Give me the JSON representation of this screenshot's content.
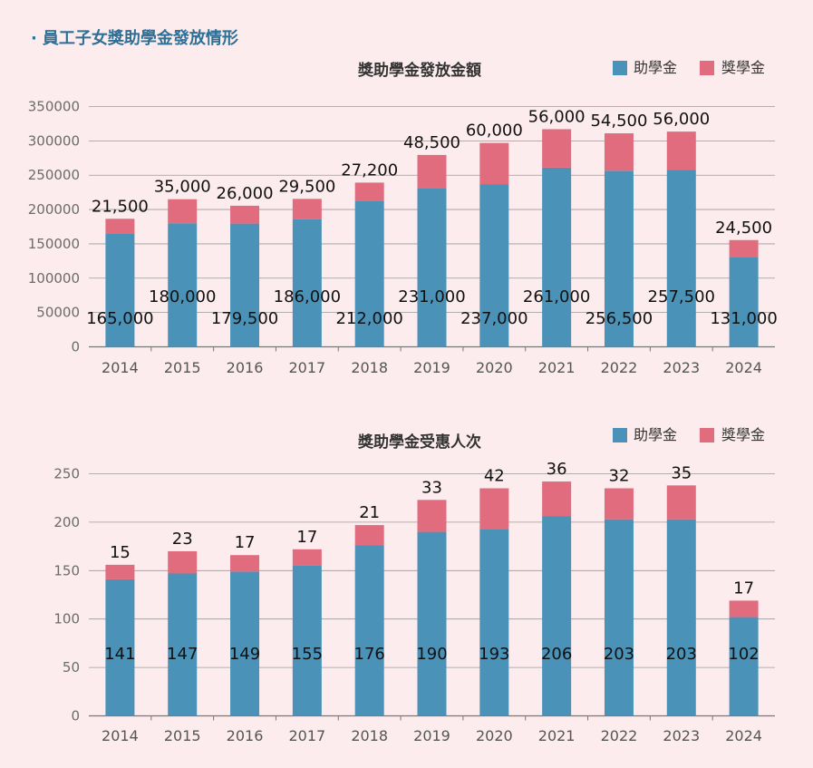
{
  "page_title": "員工子女獎助學金發放情形",
  "legend": {
    "grant": "助學金",
    "scholarship": "獎學金"
  },
  "colors": {
    "grant": "#4a92b7",
    "scholarship": "#e06c7e",
    "grid": "#9a9a9a"
  },
  "chart_data": [
    {
      "type": "bar",
      "stacked": true,
      "title": "獎助學金發放金額",
      "categories": [
        "2014",
        "2015",
        "2016",
        "2017",
        "2018",
        "2019",
        "2020",
        "2021",
        "2022",
        "2023",
        "2024"
      ],
      "series": [
        {
          "name": "助學金",
          "values": [
            165000,
            180000,
            179500,
            186000,
            212000,
            231000,
            237000,
            261000,
            256500,
            257500,
            131000
          ],
          "labels": [
            "165,000",
            "180,000",
            "179,500",
            "186,000",
            "212,000",
            "231,000",
            "237,000",
            "261,000",
            "256,500",
            "257,500",
            "131,000"
          ]
        },
        {
          "name": "獎學金",
          "values": [
            21500,
            35000,
            26000,
            29500,
            27200,
            48500,
            60000,
            56000,
            54500,
            56000,
            24500
          ],
          "labels": [
            "21,500",
            "35,000",
            "26,000",
            "29,500",
            "27,200",
            "48,500",
            "60,000",
            "56,000",
            "54,500",
            "56,000",
            "24,500"
          ]
        }
      ],
      "ylim": [
        0,
        350000
      ],
      "yticks": [
        0,
        50000,
        100000,
        150000,
        200000,
        250000,
        300000,
        350000
      ],
      "ytick_labels": [
        "0",
        "50000",
        "100000",
        "150000",
        "200000",
        "250000",
        "300000",
        "350000"
      ],
      "grid": true,
      "legend_position": "top-right"
    },
    {
      "type": "bar",
      "stacked": true,
      "title": "獎助學金受惠人次",
      "categories": [
        "2014",
        "2015",
        "2016",
        "2017",
        "2018",
        "2019",
        "2020",
        "2021",
        "2022",
        "2023",
        "2024"
      ],
      "series": [
        {
          "name": "助學金",
          "values": [
            141,
            147,
            149,
            155,
            176,
            190,
            193,
            206,
            203,
            203,
            102
          ],
          "labels": [
            "141",
            "147",
            "149",
            "155",
            "176",
            "190",
            "193",
            "206",
            "203",
            "203",
            "102"
          ]
        },
        {
          "name": "獎學金",
          "values": [
            15,
            23,
            17,
            17,
            21,
            33,
            42,
            36,
            32,
            35,
            17
          ],
          "labels": [
            "15",
            "23",
            "17",
            "17",
            "21",
            "33",
            "42",
            "36",
            "32",
            "35",
            "17"
          ]
        }
      ],
      "ylim": [
        0,
        250
      ],
      "yticks": [
        0,
        50,
        100,
        150,
        200,
        250
      ],
      "ytick_labels": [
        "0",
        "50",
        "100",
        "150",
        "200",
        "250"
      ],
      "grid": true,
      "legend_position": "top-right"
    }
  ]
}
